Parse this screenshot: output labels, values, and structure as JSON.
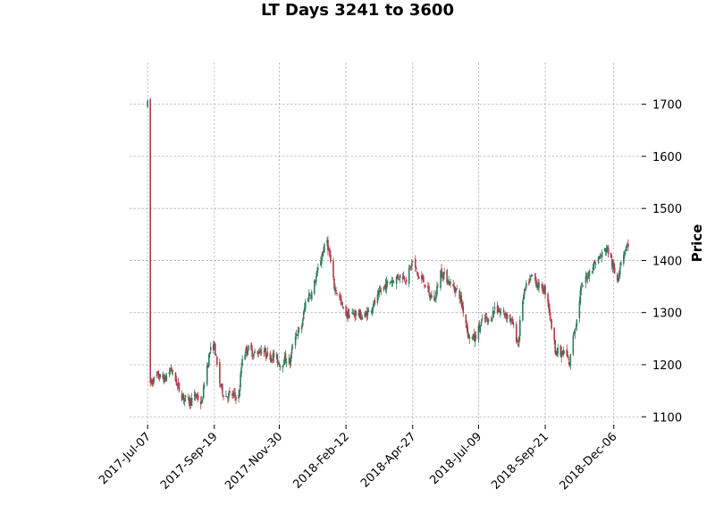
{
  "chart_data": {
    "type": "candlestick",
    "title": "LT Days 3241 to 3600",
    "ylabel": "Price",
    "xlabel": "",
    "ylim": [
      1085,
      1780
    ],
    "y_ticks": [
      1100,
      1200,
      1300,
      1400,
      1500,
      1600,
      1700
    ],
    "x_range": [
      "2017-06-17",
      "2019-01-06"
    ],
    "x_ticks": [
      "2017-Jul-07",
      "2017-Sep-19",
      "2017-Nov-30",
      "2018-Feb-12",
      "2018-Apr-27",
      "2018-Jul-09",
      "2018-Sep-21",
      "2018-Dec-06"
    ],
    "x_tick_dates": [
      "2017-07-07",
      "2017-09-19",
      "2017-11-30",
      "2018-02-12",
      "2018-04-27",
      "2018-07-09",
      "2018-09-21",
      "2018-12-06"
    ],
    "grid": true,
    "y_axis_side": "right",
    "colors": {
      "up": "#2e7d5b",
      "down": "#b03a48",
      "grid": "#b0b0b0"
    },
    "close_path": [
      [
        "2017-07-07",
        1700
      ],
      [
        "2017-07-09",
        1745
      ],
      [
        "2017-07-10",
        1165
      ],
      [
        "2017-07-18",
        1178
      ],
      [
        "2017-07-26",
        1172
      ],
      [
        "2017-08-02",
        1192
      ],
      [
        "2017-08-08",
        1165
      ],
      [
        "2017-08-14",
        1140
      ],
      [
        "2017-08-22",
        1130
      ],
      [
        "2017-08-30",
        1140
      ],
      [
        "2017-09-05",
        1125
      ],
      [
        "2017-09-09",
        1180
      ],
      [
        "2017-09-14",
        1225
      ],
      [
        "2017-09-19",
        1238
      ],
      [
        "2017-09-24",
        1170
      ],
      [
        "2017-09-30",
        1140
      ],
      [
        "2017-10-08",
        1142
      ],
      [
        "2017-10-16",
        1138
      ],
      [
        "2017-10-20",
        1215
      ],
      [
        "2017-10-26",
        1232
      ],
      [
        "2017-11-02",
        1220
      ],
      [
        "2017-11-10",
        1228
      ],
      [
        "2017-11-18",
        1218
      ],
      [
        "2017-11-25",
        1215
      ],
      [
        "2017-12-01",
        1200
      ],
      [
        "2017-12-07",
        1212
      ],
      [
        "2017-12-12",
        1205
      ],
      [
        "2017-12-17",
        1258
      ],
      [
        "2017-12-24",
        1265
      ],
      [
        "2017-12-30",
        1330
      ],
      [
        "2018-01-05",
        1338
      ],
      [
        "2018-01-11",
        1375
      ],
      [
        "2018-01-17",
        1415
      ],
      [
        "2018-01-22",
        1438
      ],
      [
        "2018-01-26",
        1395
      ],
      [
        "2018-01-30",
        1350
      ],
      [
        "2018-02-04",
        1332
      ],
      [
        "2018-02-10",
        1300
      ],
      [
        "2018-02-16",
        1295
      ],
      [
        "2018-02-24",
        1300
      ],
      [
        "2018-03-03",
        1290
      ],
      [
        "2018-03-10",
        1305
      ],
      [
        "2018-03-17",
        1322
      ],
      [
        "2018-03-24",
        1345
      ],
      [
        "2018-04-01",
        1360
      ],
      [
        "2018-04-08",
        1365
      ],
      [
        "2018-04-14",
        1372
      ],
      [
        "2018-04-20",
        1365
      ],
      [
        "2018-04-27",
        1398
      ],
      [
        "2018-05-03",
        1370
      ],
      [
        "2018-05-10",
        1358
      ],
      [
        "2018-05-16",
        1330
      ],
      [
        "2018-05-22",
        1330
      ],
      [
        "2018-05-28",
        1378
      ],
      [
        "2018-06-04",
        1365
      ],
      [
        "2018-06-10",
        1350
      ],
      [
        "2018-06-17",
        1340
      ],
      [
        "2018-06-24",
        1290
      ],
      [
        "2018-06-28",
        1255
      ],
      [
        "2018-07-04",
        1250
      ],
      [
        "2018-07-09",
        1268
      ],
      [
        "2018-07-15",
        1290
      ],
      [
        "2018-07-21",
        1282
      ],
      [
        "2018-07-27",
        1310
      ],
      [
        "2018-08-03",
        1300
      ],
      [
        "2018-08-10",
        1295
      ],
      [
        "2018-08-16",
        1278
      ],
      [
        "2018-08-22",
        1238
      ],
      [
        "2018-08-26",
        1320
      ],
      [
        "2018-09-01",
        1355
      ],
      [
        "2018-09-07",
        1370
      ],
      [
        "2018-09-13",
        1352
      ],
      [
        "2018-09-19",
        1345
      ],
      [
        "2018-09-23",
        1335
      ],
      [
        "2018-09-27",
        1285
      ],
      [
        "2018-10-02",
        1230
      ],
      [
        "2018-10-08",
        1220
      ],
      [
        "2018-10-13",
        1225
      ],
      [
        "2018-10-18",
        1200
      ],
      [
        "2018-10-22",
        1260
      ],
      [
        "2018-10-26",
        1285
      ],
      [
        "2018-10-30",
        1340
      ],
      [
        "2018-11-05",
        1365
      ],
      [
        "2018-11-11",
        1385
      ],
      [
        "2018-11-17",
        1400
      ],
      [
        "2018-11-23",
        1412
      ],
      [
        "2018-11-28",
        1425
      ],
      [
        "2018-12-02",
        1408
      ],
      [
        "2018-12-06",
        1380
      ],
      [
        "2018-12-10",
        1365
      ],
      [
        "2018-12-14",
        1400
      ],
      [
        "2018-12-18",
        1420
      ],
      [
        "2018-12-22",
        1432
      ]
    ]
  }
}
